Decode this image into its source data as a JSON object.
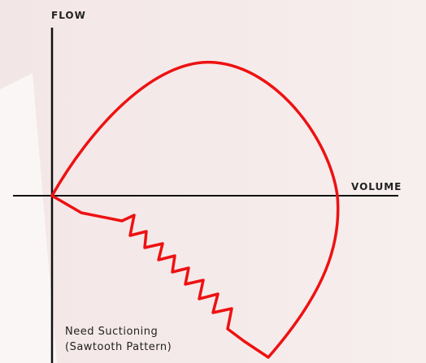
{
  "diagram": {
    "y_axis_label": "FLOW",
    "x_axis_label": "VOLUME",
    "annotation": [
      "Need Suctioning",
      "(Sawtooth Pattern)"
    ]
  }
}
